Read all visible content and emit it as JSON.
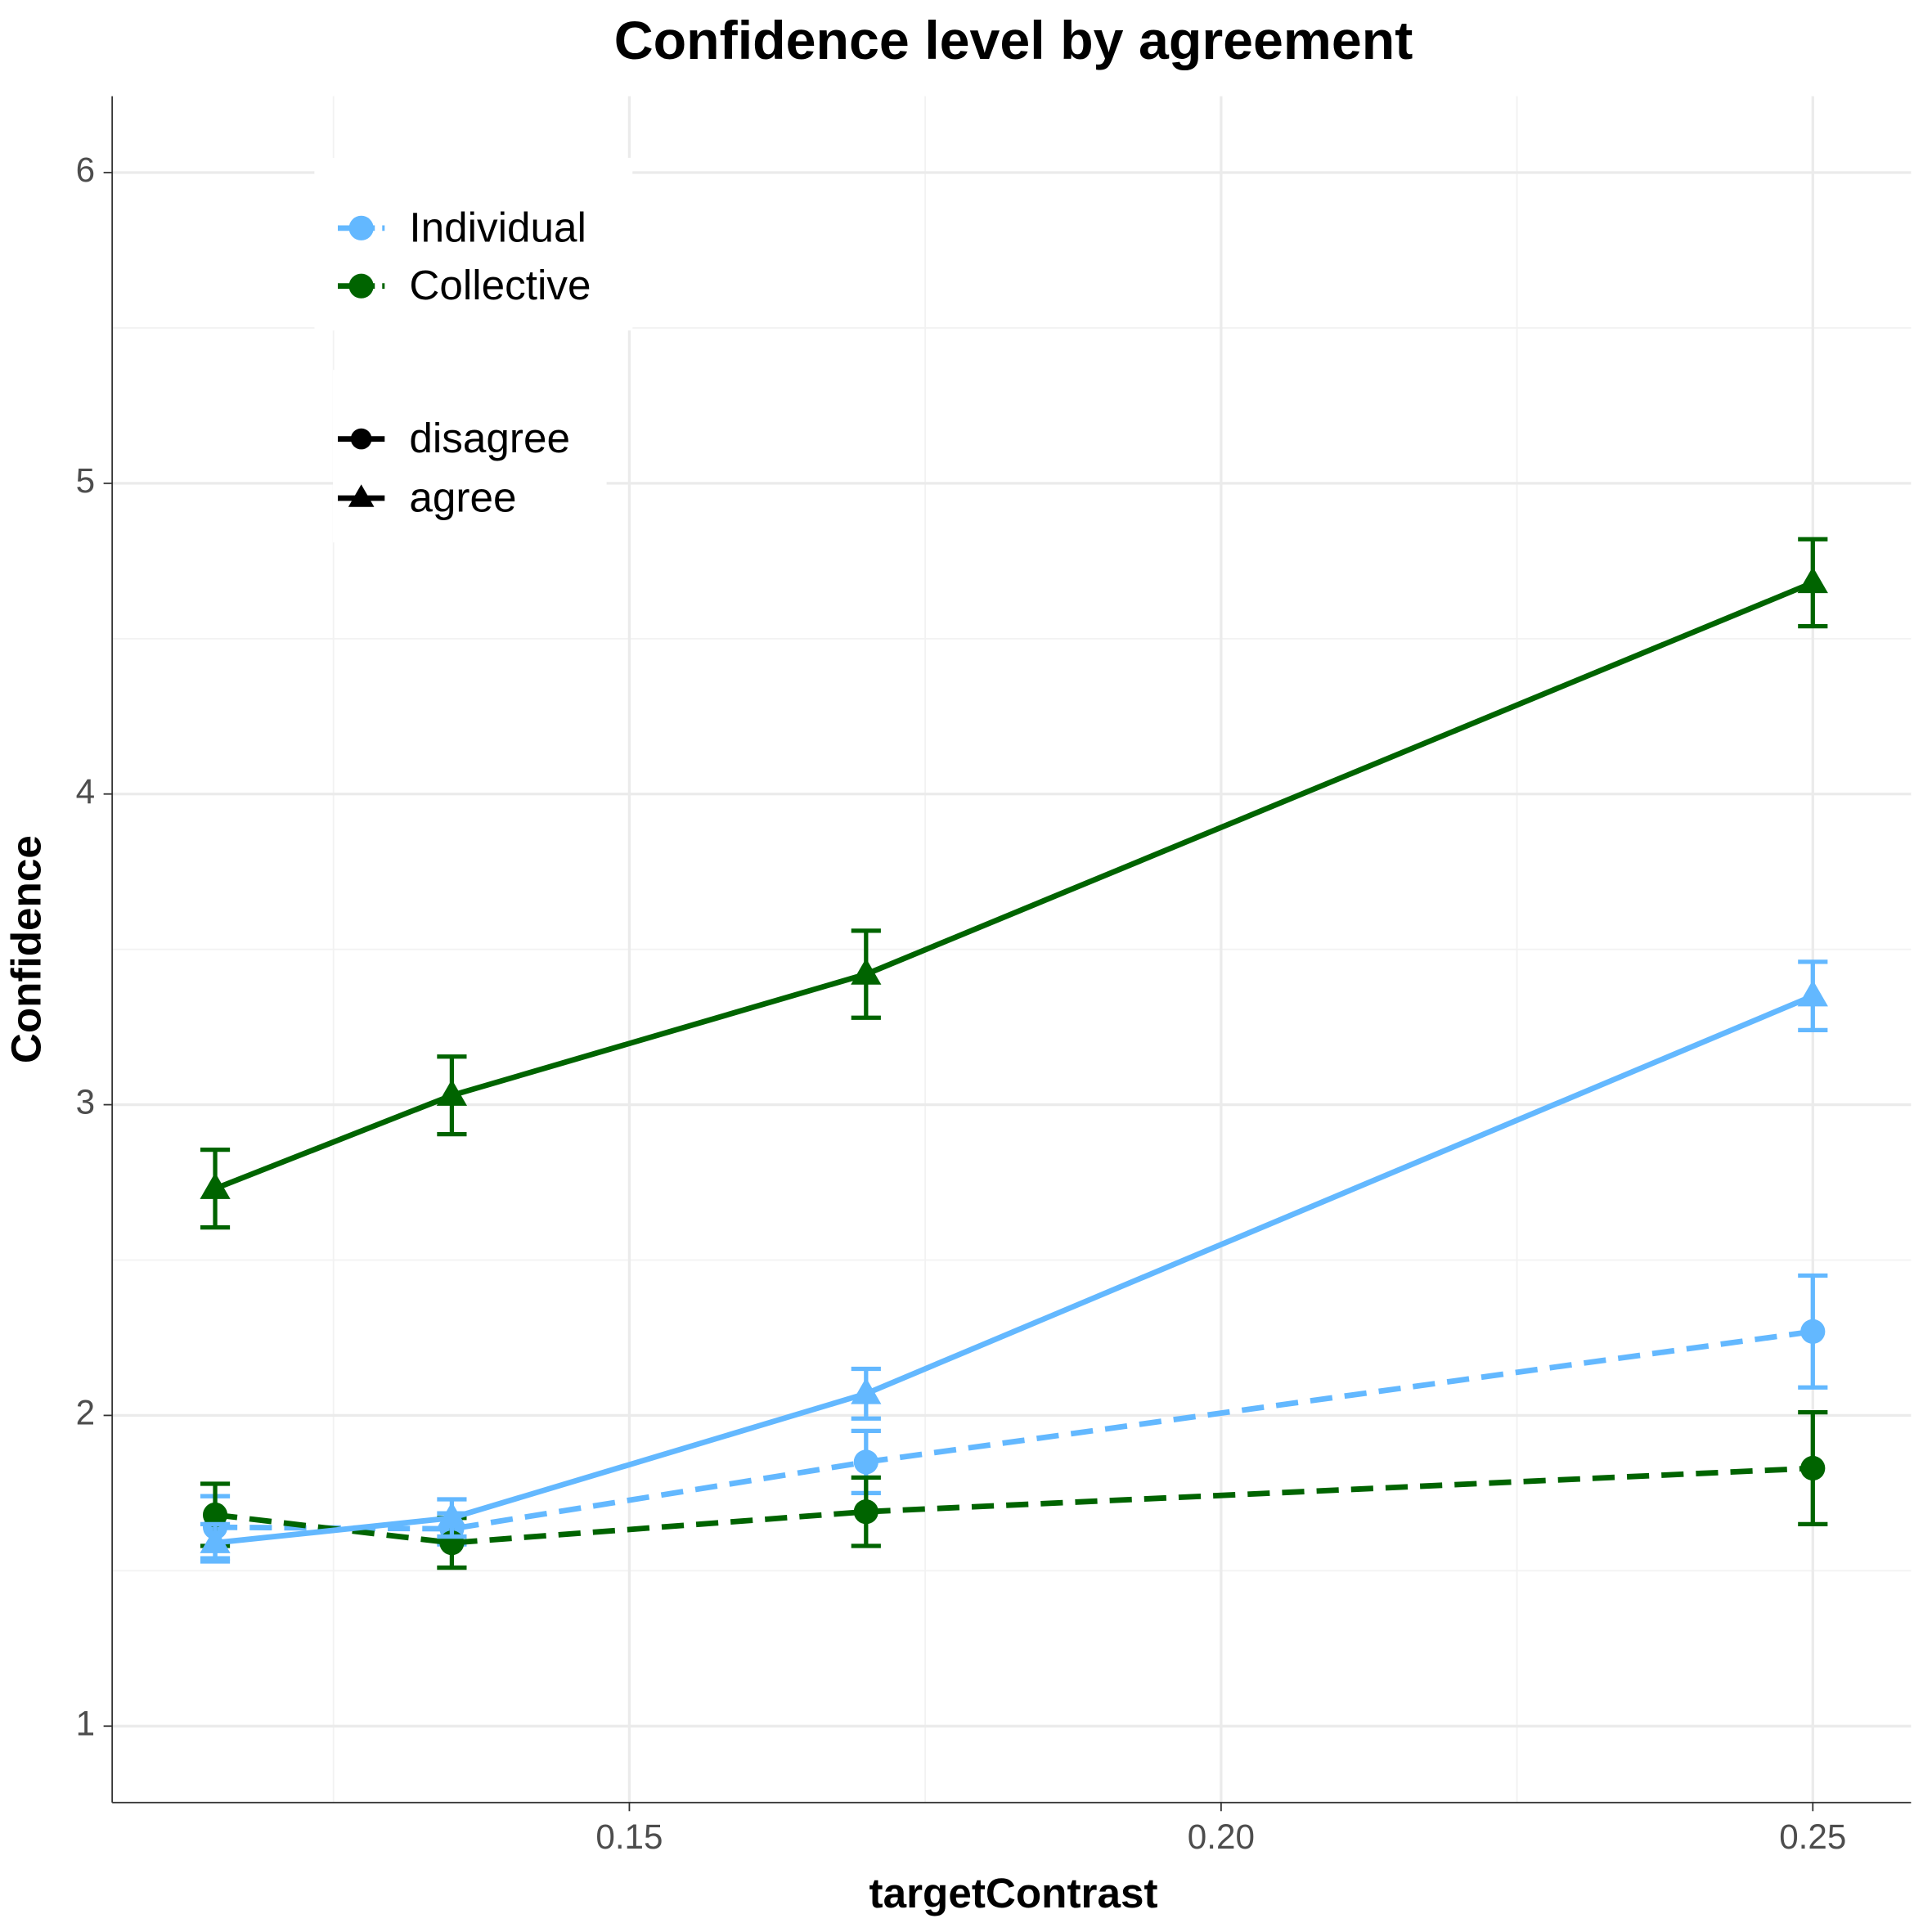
{
  "chart_data": {
    "type": "line",
    "title": "Confidence level by agreement",
    "xlabel": "targetContrast",
    "ylabel": "Confidence",
    "x": [
      0.115,
      0.135,
      0.17,
      0.25
    ],
    "xlim": [
      0.1063,
      0.2583
    ],
    "xticks": [
      0.15,
      {
        "value": 0.2,
        "label": "0.20"
      },
      0.25
    ],
    "xminor": [
      0.125,
      0.175,
      0.225
    ],
    "ylim": [
      0.754,
      6.246
    ],
    "yticks": [
      1,
      2,
      3,
      4,
      5,
      6
    ],
    "yminor": [
      1.5,
      2.5,
      3.5,
      4.5,
      5.5
    ],
    "grid": true,
    "legend": {
      "colors": [
        {
          "name": "Individual",
          "color": "#63b8ff"
        },
        {
          "name": "Collective",
          "color": "#006400"
        }
      ],
      "shapes": [
        {
          "name": "disagree",
          "marker": "circle",
          "linestyle": "dashed"
        },
        {
          "name": "agree",
          "marker": "triangle",
          "linestyle": "solid"
        }
      ]
    },
    "series": [
      {
        "color": "#63b8ff",
        "marker": "circle",
        "linestyle": "dashed",
        "values": [
          1.64,
          1.635,
          1.85,
          2.27
        ],
        "errors": [
          0.1,
          0.05,
          0.1,
          0.18
        ]
      },
      {
        "color": "#006400",
        "marker": "circle",
        "linestyle": "dashed",
        "values": [
          1.68,
          1.59,
          1.69,
          1.83
        ],
        "errors": [
          0.1,
          0.08,
          0.11,
          0.18
        ]
      },
      {
        "color": "#63b8ff",
        "marker": "triangle",
        "linestyle": "solid",
        "values": [
          1.59,
          1.67,
          2.07,
          3.35
        ],
        "errors": [
          0.06,
          0.06,
          0.08,
          0.11
        ]
      },
      {
        "color": "#006400",
        "marker": "triangle",
        "linestyle": "solid",
        "values": [
          2.73,
          3.03,
          3.42,
          4.68
        ],
        "errors": [
          0.125,
          0.125,
          0.14,
          0.14
        ]
      }
    ]
  }
}
